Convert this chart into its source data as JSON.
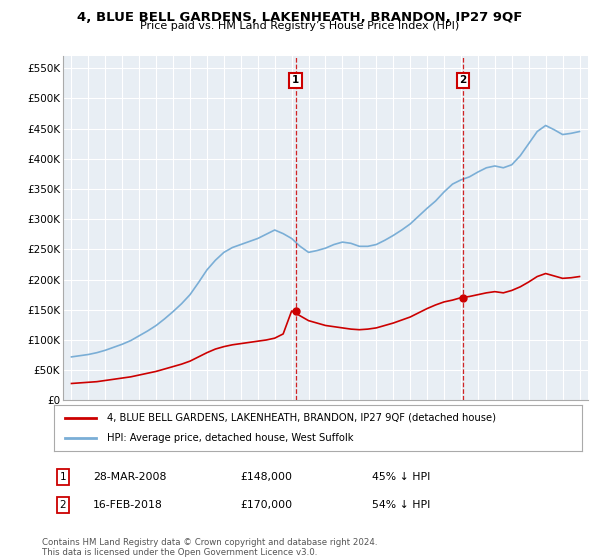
{
  "title": "4, BLUE BELL GARDENS, LAKENHEATH, BRANDON, IP27 9QF",
  "subtitle": "Price paid vs. HM Land Registry’s House Price Index (HPI)",
  "legend_red": "4, BLUE BELL GARDENS, LAKENHEATH, BRANDON, IP27 9QF (detached house)",
  "legend_blue": "HPI: Average price, detached house, West Suffolk",
  "footnote": "Contains HM Land Registry data © Crown copyright and database right 2024.\nThis data is licensed under the Open Government Licence v3.0.",
  "transaction1_date": "28-MAR-2008",
  "transaction1_price": "£148,000",
  "transaction1_hpi": "45% ↓ HPI",
  "transaction2_date": "16-FEB-2018",
  "transaction2_price": "£170,000",
  "transaction2_hpi": "54% ↓ HPI",
  "vline1_year": 2008.23,
  "vline2_year": 2018.12,
  "ylim": [
    0,
    570000
  ],
  "xlim_start": 1994.5,
  "xlim_end": 2025.5,
  "yticks": [
    0,
    50000,
    100000,
    150000,
    200000,
    250000,
    300000,
    350000,
    400000,
    450000,
    500000,
    550000
  ],
  "ytick_labels": [
    "£0",
    "£50K",
    "£100K",
    "£150K",
    "£200K",
    "£250K",
    "£300K",
    "£350K",
    "£400K",
    "£450K",
    "£500K",
    "£550K"
  ],
  "xticks": [
    1995,
    1996,
    1997,
    1998,
    1999,
    2000,
    2001,
    2002,
    2003,
    2004,
    2005,
    2006,
    2007,
    2008,
    2009,
    2010,
    2011,
    2012,
    2013,
    2014,
    2015,
    2016,
    2017,
    2018,
    2019,
    2020,
    2021,
    2022,
    2023,
    2024,
    2025
  ],
  "background_color": "#e8eef4",
  "grid_color": "#ffffff",
  "red_color": "#cc0000",
  "blue_color": "#7aaed6",
  "marker1_price": 148000,
  "marker2_price": 170000,
  "hpi_years": [
    1995,
    1995.5,
    1996,
    1996.5,
    1997,
    1997.5,
    1998,
    1998.5,
    1999,
    1999.5,
    2000,
    2000.5,
    2001,
    2001.5,
    2002,
    2002.5,
    2003,
    2003.5,
    2004,
    2004.5,
    2005,
    2005.5,
    2006,
    2006.5,
    2007,
    2007.5,
    2008,
    2008.5,
    2009,
    2009.5,
    2010,
    2010.5,
    2011,
    2011.5,
    2012,
    2012.5,
    2013,
    2013.5,
    2014,
    2014.5,
    2015,
    2015.5,
    2016,
    2016.5,
    2017,
    2017.5,
    2018,
    2018.5,
    2019,
    2019.5,
    2020,
    2020.5,
    2021,
    2021.5,
    2022,
    2022.5,
    2023,
    2023.5,
    2024,
    2024.5,
    2025
  ],
  "hpi_values": [
    72000,
    74000,
    76000,
    79000,
    83000,
    88000,
    93000,
    99000,
    107000,
    115000,
    124000,
    135000,
    147000,
    160000,
    175000,
    195000,
    216000,
    232000,
    245000,
    253000,
    258000,
    263000,
    268000,
    275000,
    282000,
    276000,
    268000,
    255000,
    245000,
    248000,
    252000,
    258000,
    262000,
    260000,
    255000,
    255000,
    258000,
    265000,
    273000,
    282000,
    292000,
    305000,
    318000,
    330000,
    345000,
    358000,
    365000,
    370000,
    378000,
    385000,
    388000,
    385000,
    390000,
    405000,
    425000,
    445000,
    455000,
    448000,
    440000,
    442000,
    445000
  ],
  "red_years": [
    1995,
    1995.5,
    1996,
    1996.5,
    1997,
    1997.5,
    1998,
    1998.5,
    1999,
    1999.5,
    2000,
    2000.5,
    2001,
    2001.5,
    2002,
    2002.5,
    2003,
    2003.5,
    2004,
    2004.5,
    2005,
    2005.5,
    2006,
    2006.5,
    2007,
    2007.5,
    2008,
    2008.5,
    2009,
    2009.5,
    2010,
    2010.5,
    2011,
    2011.5,
    2012,
    2012.5,
    2013,
    2013.5,
    2014,
    2014.5,
    2015,
    2015.5,
    2016,
    2016.5,
    2017,
    2017.5,
    2018,
    2018.5,
    2019,
    2019.5,
    2020,
    2020.5,
    2021,
    2021.5,
    2022,
    2022.5,
    2023,
    2023.5,
    2024,
    2024.5,
    2025
  ],
  "red_values": [
    28000,
    29000,
    30000,
    31000,
    33000,
    35000,
    37000,
    39000,
    42000,
    45000,
    48000,
    52000,
    56000,
    60000,
    65000,
    72000,
    79000,
    85000,
    89000,
    92000,
    94000,
    96000,
    98000,
    100000,
    103000,
    110000,
    148000,
    140000,
    132000,
    128000,
    124000,
    122000,
    120000,
    118000,
    117000,
    118000,
    120000,
    124000,
    128000,
    133000,
    138000,
    145000,
    152000,
    158000,
    163000,
    166000,
    170000,
    172000,
    175000,
    178000,
    180000,
    178000,
    182000,
    188000,
    196000,
    205000,
    210000,
    206000,
    202000,
    203000,
    205000
  ]
}
